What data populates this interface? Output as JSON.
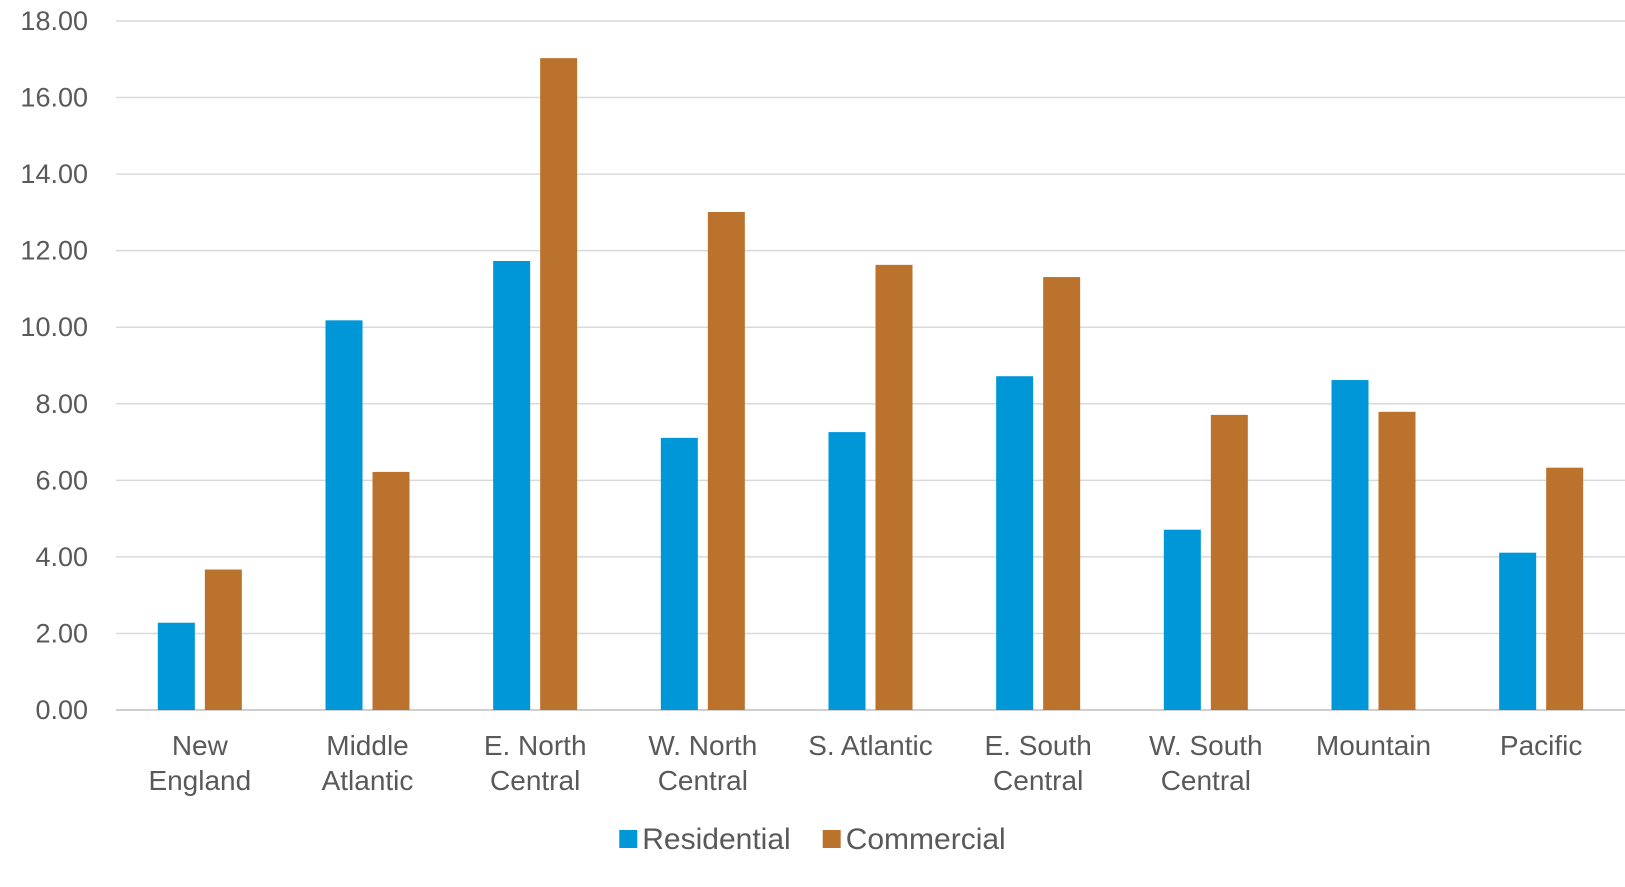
{
  "chart_data": {
    "type": "bar",
    "title": "",
    "xlabel": "",
    "ylabel": "",
    "categories": [
      [
        "New",
        "England"
      ],
      [
        "Middle",
        "Atlantic"
      ],
      [
        "E. North",
        "Central"
      ],
      [
        "W. North",
        "Central"
      ],
      [
        "S. Atlantic"
      ],
      [
        "E. South",
        "Central"
      ],
      [
        "W. South",
        "Central"
      ],
      [
        "Mountain"
      ],
      [
        "Pacific"
      ]
    ],
    "series": [
      {
        "name": "Residential",
        "color": "#0097d8",
        "values": [
          2.28,
          10.18,
          11.73,
          7.11,
          7.26,
          8.72,
          4.71,
          8.62,
          4.11
        ]
      },
      {
        "name": "Commercial",
        "color": "#bb722d",
        "values": [
          3.67,
          6.22,
          17.03,
          13.01,
          11.63,
          11.31,
          7.71,
          7.79,
          6.33
        ]
      }
    ],
    "ylim": [
      0,
      18
    ],
    "y_ticks": [
      "0.00",
      "2.00",
      "4.00",
      "6.00",
      "8.00",
      "10.00",
      "12.00",
      "14.00",
      "16.00",
      "18.00"
    ],
    "grid": true,
    "legend_position": "bottom-center"
  }
}
